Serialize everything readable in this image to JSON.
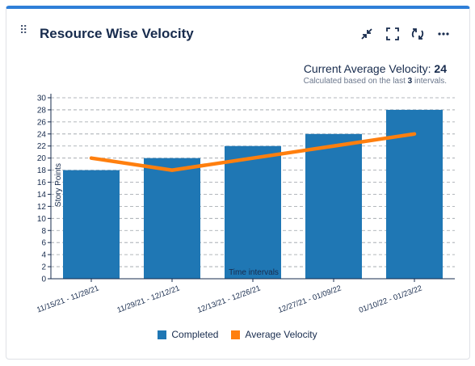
{
  "widget": {
    "title": "Resource Wise Velocity",
    "drag_icon": "drag-handle-icon",
    "tools": [
      "minimize-icon",
      "fullscreen-icon",
      "refresh-icon",
      "more-icon"
    ]
  },
  "summary": {
    "label": "Current Average Velocity:",
    "value": "24",
    "sub_prefix": "Calculated based on the last",
    "sub_count": "3",
    "sub_suffix": "intervals."
  },
  "colors": {
    "completed": "#1f77b4",
    "average": "#ff7f0e"
  },
  "chart_data": {
    "type": "bar",
    "categories": [
      "11/15/21 - 11/28/21",
      "11/29/21 - 12/12/21",
      "12/13/21 - 12/26/21",
      "12/27/21 - 01/09/22",
      "01/10/22 - 01/23/22"
    ],
    "series": [
      {
        "name": "Completed",
        "type": "bar",
        "values": [
          18,
          20,
          22,
          24,
          28
        ]
      },
      {
        "name": "Average Velocity",
        "type": "line",
        "values": [
          20,
          18,
          20,
          22,
          24
        ]
      }
    ],
    "xlabel": "Time intervals",
    "ylabel": "Story Points",
    "ylim": [
      0,
      30
    ],
    "yticks": [
      0,
      2,
      4,
      6,
      8,
      10,
      12,
      14,
      16,
      18,
      20,
      22,
      24,
      26,
      28,
      30
    ],
    "grid": true,
    "legend": "bottom"
  }
}
